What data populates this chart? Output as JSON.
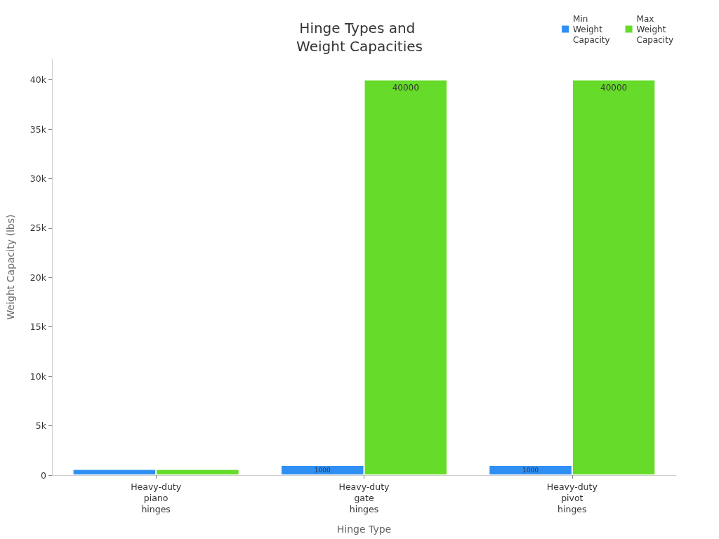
{
  "chart_data": {
    "type": "bar",
    "title": "Hinge Types and Weight Capacities",
    "xlabel": "Hinge Type",
    "ylabel": "Weight Capacity (lbs)",
    "categories": [
      "Heavy-duty piano hinges",
      "Heavy-duty gate hinges",
      "Heavy-duty pivot hinges"
    ],
    "series": [
      {
        "name": "Min Weight Capacity",
        "color": "#2f8ff2",
        "values": [
          600,
          1000,
          1000
        ],
        "value_labels": [
          null,
          "1000",
          "1000"
        ]
      },
      {
        "name": "Max Weight Capacity",
        "color": "#66db29",
        "values": [
          600,
          40000,
          40000
        ],
        "value_labels": [
          null,
          "40000",
          "40000"
        ]
      }
    ],
    "ylim": [
      0,
      42100
    ],
    "yticks": [
      0,
      {
        "value": 5000,
        "label": "5k"
      },
      {
        "value": 10000,
        "label": "10k"
      },
      {
        "value": 15000,
        "label": "15k"
      },
      {
        "value": 20000,
        "label": "20k"
      },
      {
        "value": 25000,
        "label": "25k"
      },
      {
        "value": 30000,
        "label": "30k"
      },
      {
        "value": 35000,
        "label": "35k"
      },
      {
        "value": 40000,
        "label": "40k"
      }
    ],
    "grid": false,
    "legend": "top right"
  }
}
